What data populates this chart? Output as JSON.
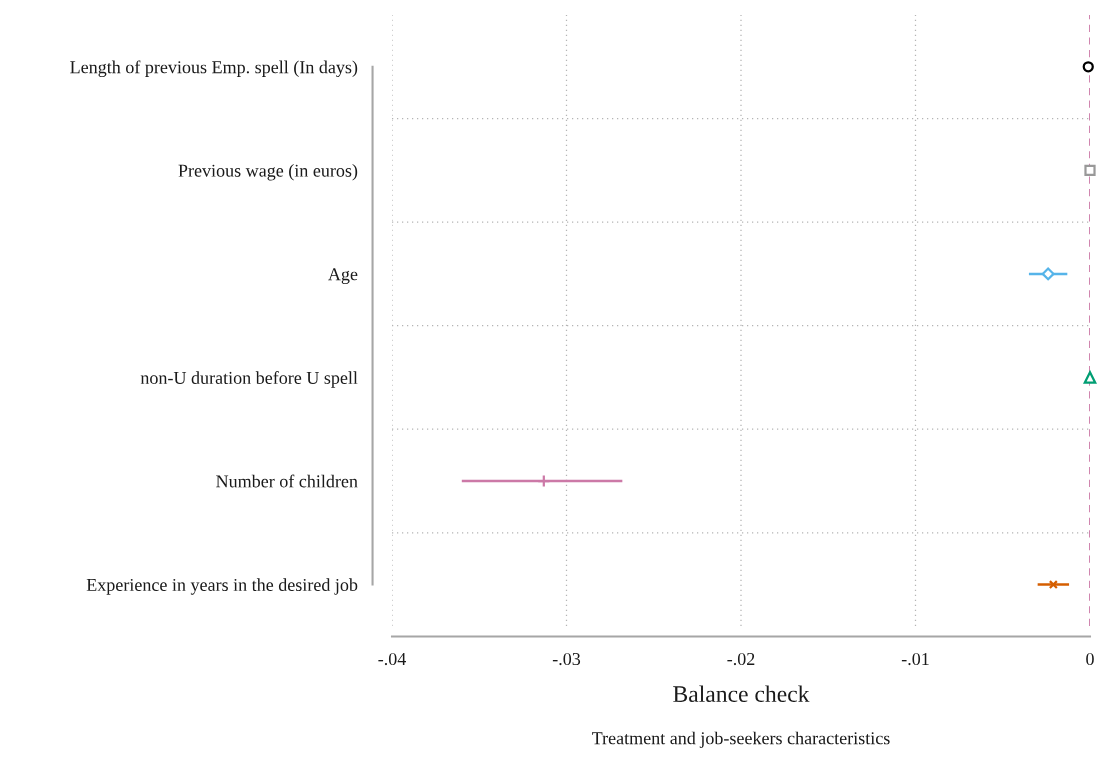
{
  "chart_data": {
    "type": "scatter",
    "orientation": "horizontal",
    "categories": [
      "Length of previous Emp. spell (In days)",
      "Previous wage (in euros)",
      "Age",
      "non-U duration before U spell",
      "Number of children",
      "Experience in years in the desired job"
    ],
    "series": [
      {
        "color": "#000000",
        "marker": "circle",
        "values": [
          -0.0001,
          null,
          null,
          null,
          null,
          null
        ]
      },
      {
        "color": "#999999",
        "marker": "square",
        "values": [
          null,
          0,
          null,
          null,
          null,
          null
        ]
      },
      {
        "color": "#56b4e9",
        "marker": "diamond",
        "values": [
          null,
          null,
          -0.0024,
          null,
          null,
          null
        ],
        "errors": [
          null,
          null,
          [
            -0.0035,
            -0.0013
          ],
          null,
          null,
          null
        ]
      },
      {
        "color": "#009e73",
        "marker": "triangle",
        "values": [
          null,
          null,
          null,
          0,
          null,
          null
        ]
      },
      {
        "color": "#cc79a7",
        "marker": "plus",
        "values": [
          null,
          null,
          null,
          null,
          -0.0313,
          null
        ],
        "errors": [
          null,
          null,
          null,
          null,
          [
            -0.036,
            -0.0268
          ],
          null
        ]
      },
      {
        "color": "#d55e00",
        "marker": "cross",
        "values": [
          null,
          null,
          null,
          null,
          null,
          -0.0021
        ],
        "errors": [
          null,
          null,
          null,
          null,
          null,
          [
            -0.003,
            -0.0012
          ]
        ]
      }
    ],
    "xlim": [
      -0.04,
      0
    ],
    "xticks": [
      {
        "value": -0.04,
        "label": "-.04"
      },
      {
        "value": -0.03,
        "label": "-.03"
      },
      {
        "value": -0.02,
        "label": "-.02"
      },
      {
        "value": -0.01,
        "label": "-.01"
      },
      0
    ],
    "ref_lines": [
      {
        "axis": "x",
        "value": 0,
        "color": "#cc79a7",
        "line_style": "dashed"
      }
    ],
    "grid": true,
    "xlabel": "Balance check",
    "annotations": [
      "Treatment and job-seekers characteristics"
    ]
  }
}
